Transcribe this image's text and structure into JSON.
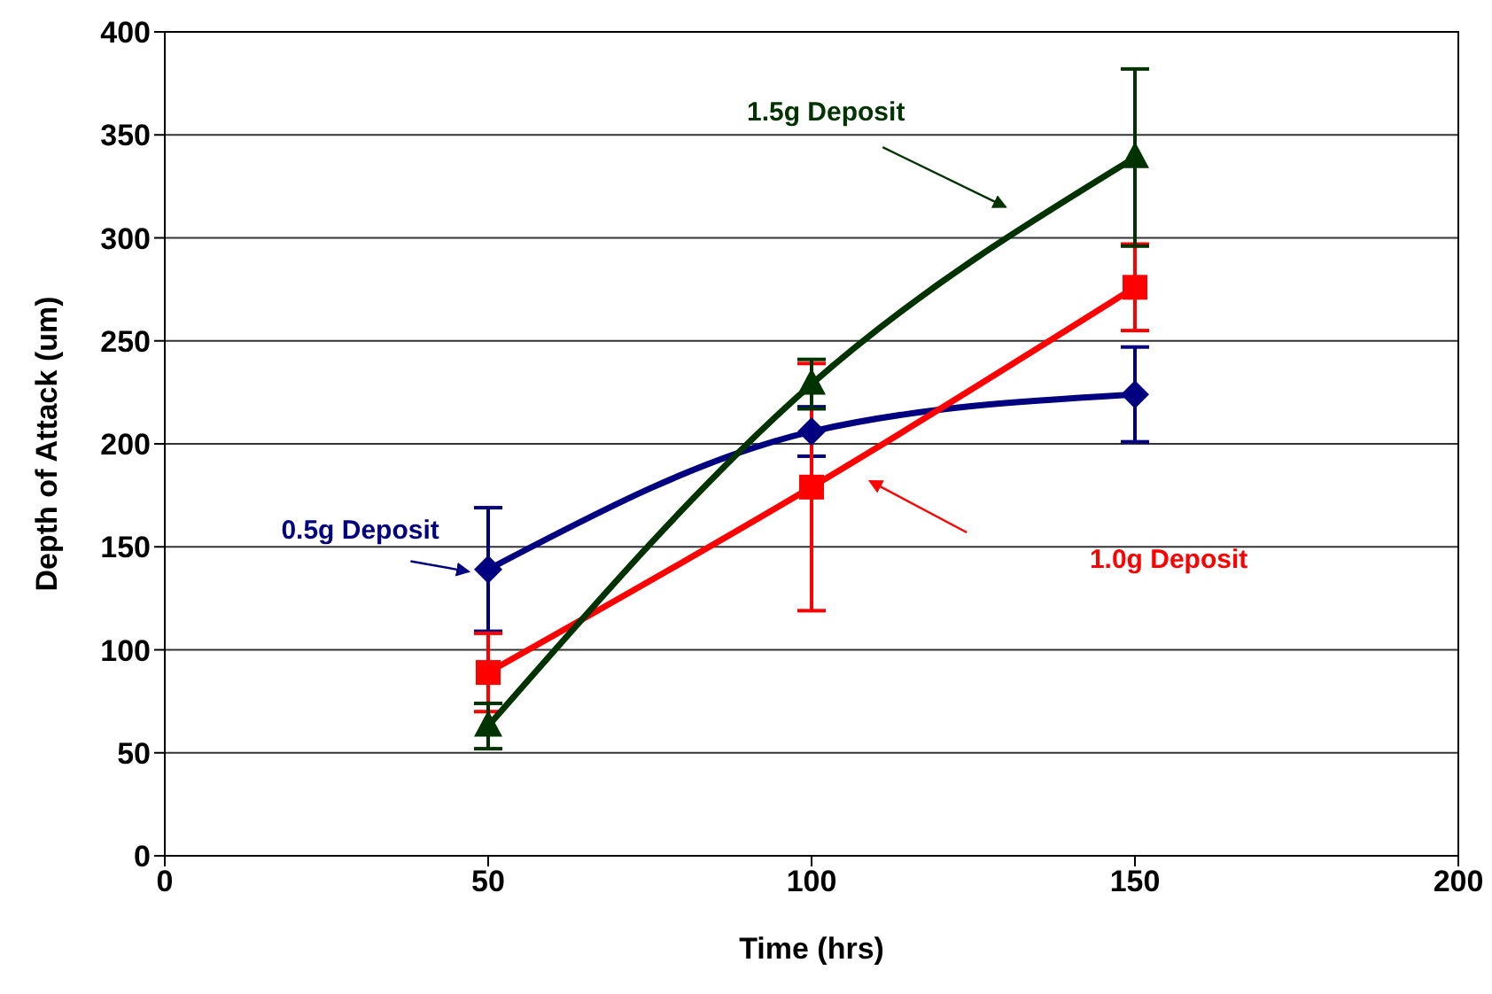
{
  "chart_data": {
    "type": "line",
    "xlabel": "Time (hrs)",
    "ylabel": "Depth of Attack (um)",
    "x": [
      50,
      100,
      150
    ],
    "xlim": [
      0,
      200
    ],
    "xticks": [
      0,
      50,
      100,
      150,
      200
    ],
    "ylim": [
      0,
      400
    ],
    "yticks": [
      0,
      50,
      100,
      150,
      200,
      250,
      300,
      350,
      400
    ],
    "grid": "y",
    "legend": false,
    "series": [
      {
        "name": "0.5g Deposit",
        "color": "#000080",
        "marker": "diamond",
        "values": [
          139,
          206,
          224
        ],
        "errors": [
          30,
          12,
          23
        ]
      },
      {
        "name": "1.0g Deposit",
        "color": "#ff0000",
        "marker": "square",
        "values": [
          89,
          179,
          276
        ],
        "errors": [
          19,
          60,
          21
        ]
      },
      {
        "name": "1.5g Deposit",
        "color": "#003300",
        "marker": "triangle",
        "values": [
          63,
          229,
          339
        ],
        "errors": [
          11,
          12,
          43
        ]
      }
    ]
  }
}
